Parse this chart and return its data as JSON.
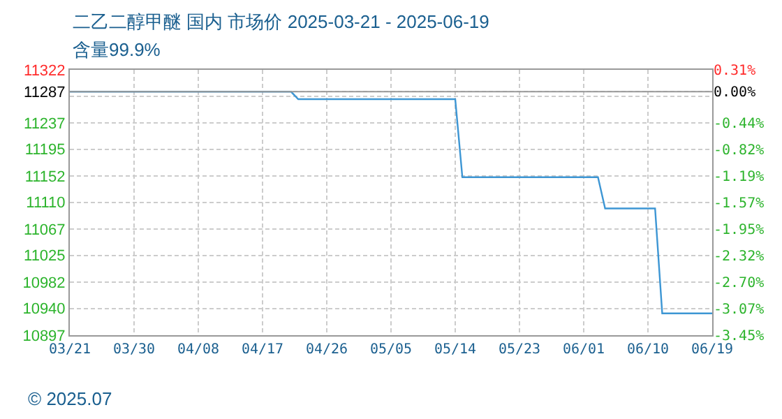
{
  "chart_data": {
    "type": "line",
    "title": "二乙二醇甲醚 国内 市场价 2025-03-21 - 2025-06-19",
    "subtitle": "含量99.9%",
    "x": [
      "2025-03-21",
      "2025-04-21",
      "2025-04-22",
      "2025-05-14",
      "2025-05-15",
      "2025-06-03",
      "2025-06-04",
      "2025-06-11",
      "2025-06-12",
      "2025-06-19"
    ],
    "series": [
      {
        "color": "#3d96d4",
        "values": [
          11287,
          11287,
          11275,
          11275,
          11150,
          11150,
          11100,
          11100,
          10932,
          10932
        ]
      }
    ],
    "xlim": [
      "2025-03-21",
      "2025-06-19"
    ],
    "xticks": [
      {
        "value": "2025-03-21",
        "label": "03/21"
      },
      {
        "value": "2025-03-30",
        "label": "03/30"
      },
      {
        "value": "2025-04-08",
        "label": "04/08"
      },
      {
        "value": "2025-04-17",
        "label": "04/17"
      },
      {
        "value": "2025-04-26",
        "label": "04/26"
      },
      {
        "value": "2025-05-05",
        "label": "05/05"
      },
      {
        "value": "2025-05-14",
        "label": "05/14"
      },
      {
        "value": "2025-05-23",
        "label": "05/23"
      },
      {
        "value": "2025-06-01",
        "label": "06/01"
      },
      {
        "value": "2025-06-10",
        "label": "06/10"
      },
      {
        "value": "2025-06-19",
        "label": "06/19"
      }
    ],
    "ylim": [
      10897,
      11322
    ],
    "yticks": [
      11322,
      11287,
      {
        "value": 11279.5,
        "label": null
      },
      11237,
      11195,
      11152,
      11110,
      11067,
      11025,
      10982,
      10940,
      10897
    ],
    "y2lim": [
      -3.45,
      0.31
    ],
    "y2ticks": [
      {
        "value": 0.31,
        "label": "0.31%"
      },
      {
        "value": 0,
        "label": "0.00%"
      },
      {
        "value": -0.44,
        "label": "-0.44%"
      },
      {
        "value": -0.82,
        "label": "-0.82%"
      },
      {
        "value": -1.19,
        "label": "-1.19%"
      },
      {
        "value": -1.57,
        "label": "-1.57%"
      },
      {
        "value": -1.95,
        "label": "-1.95%"
      },
      {
        "value": -2.32,
        "label": "-2.32%"
      },
      {
        "value": -2.7,
        "label": "-2.70%"
      },
      {
        "value": -3.07,
        "label": "-3.07%"
      },
      {
        "value": -3.45,
        "label": "-3.45%"
      }
    ],
    "ref_lines": [
      {
        "axis": "y",
        "value": 11287,
        "color": "#999999"
      }
    ],
    "grid": true,
    "marker": "none",
    "line_style": "solid",
    "annotations": [
      "© 2025.07"
    ]
  }
}
